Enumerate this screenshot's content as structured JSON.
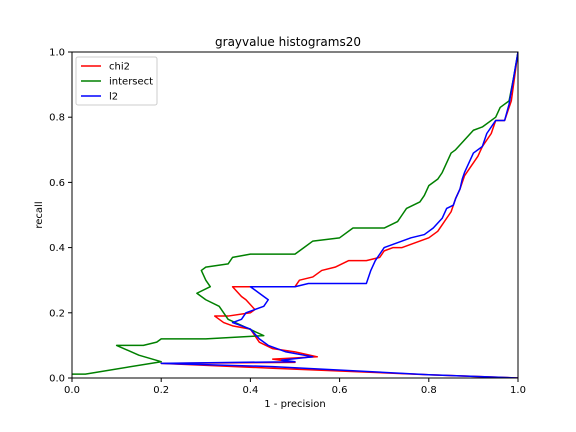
{
  "chart_data": {
    "type": "line",
    "title": "grayvalue histograms20",
    "xlabel": "1 - precision",
    "ylabel": "recall",
    "xlim": [
      0.0,
      1.0
    ],
    "ylim": [
      0.0,
      1.0
    ],
    "xticks": [
      "0.0",
      "0.2",
      "0.4",
      "0.6",
      "0.8",
      "1.0"
    ],
    "yticks": [
      "0.0",
      "0.2",
      "0.4",
      "0.6",
      "0.8",
      "1.0"
    ],
    "grid": false,
    "legend": "top-left",
    "series": [
      {
        "name": "chi2",
        "color": "#ff0000",
        "points": [
          [
            1.0,
            1.0
          ],
          [
            0.99,
            0.9
          ],
          [
            0.985,
            0.85
          ],
          [
            0.97,
            0.79
          ],
          [
            0.95,
            0.79
          ],
          [
            0.94,
            0.75
          ],
          [
            0.92,
            0.71
          ],
          [
            0.91,
            0.68
          ],
          [
            0.9,
            0.66
          ],
          [
            0.89,
            0.64
          ],
          [
            0.88,
            0.62
          ],
          [
            0.875,
            0.6
          ],
          [
            0.87,
            0.58
          ],
          [
            0.86,
            0.55
          ],
          [
            0.855,
            0.53
          ],
          [
            0.85,
            0.51
          ],
          [
            0.84,
            0.49
          ],
          [
            0.83,
            0.47
          ],
          [
            0.82,
            0.45
          ],
          [
            0.8,
            0.43
          ],
          [
            0.78,
            0.42
          ],
          [
            0.76,
            0.41
          ],
          [
            0.74,
            0.4
          ],
          [
            0.72,
            0.4
          ],
          [
            0.7,
            0.39
          ],
          [
            0.69,
            0.37
          ],
          [
            0.66,
            0.36
          ],
          [
            0.62,
            0.36
          ],
          [
            0.59,
            0.34
          ],
          [
            0.56,
            0.33
          ],
          [
            0.54,
            0.31
          ],
          [
            0.51,
            0.3
          ],
          [
            0.5,
            0.28
          ],
          [
            0.45,
            0.28
          ],
          [
            0.36,
            0.28
          ],
          [
            0.38,
            0.25
          ],
          [
            0.39,
            0.24
          ],
          [
            0.41,
            0.21
          ],
          [
            0.4,
            0.2
          ],
          [
            0.35,
            0.19
          ],
          [
            0.32,
            0.19
          ],
          [
            0.34,
            0.17
          ],
          [
            0.36,
            0.16
          ],
          [
            0.4,
            0.15
          ],
          [
            0.42,
            0.11
          ],
          [
            0.45,
            0.09
          ],
          [
            0.5,
            0.08
          ],
          [
            0.55,
            0.065
          ],
          [
            0.45,
            0.058
          ],
          [
            0.5,
            0.048
          ],
          [
            0.2,
            0.045
          ],
          [
            0.45,
            0.03
          ],
          [
            0.8,
            0.01
          ],
          [
            1.0,
            0.0
          ]
        ]
      },
      {
        "name": "intersect",
        "color": "#008000",
        "points": [
          [
            1.0,
            1.0
          ],
          [
            0.99,
            0.92
          ],
          [
            0.98,
            0.85
          ],
          [
            0.96,
            0.83
          ],
          [
            0.95,
            0.8
          ],
          [
            0.92,
            0.77
          ],
          [
            0.9,
            0.76
          ],
          [
            0.88,
            0.73
          ],
          [
            0.86,
            0.7
          ],
          [
            0.85,
            0.69
          ],
          [
            0.84,
            0.66
          ],
          [
            0.83,
            0.63
          ],
          [
            0.82,
            0.61
          ],
          [
            0.8,
            0.59
          ],
          [
            0.79,
            0.56
          ],
          [
            0.78,
            0.54
          ],
          [
            0.75,
            0.52
          ],
          [
            0.74,
            0.5
          ],
          [
            0.73,
            0.48
          ],
          [
            0.7,
            0.46
          ],
          [
            0.63,
            0.46
          ],
          [
            0.6,
            0.43
          ],
          [
            0.54,
            0.42
          ],
          [
            0.52,
            0.4
          ],
          [
            0.5,
            0.38
          ],
          [
            0.4,
            0.38
          ],
          [
            0.36,
            0.37
          ],
          [
            0.35,
            0.35
          ],
          [
            0.3,
            0.34
          ],
          [
            0.29,
            0.33
          ],
          [
            0.3,
            0.3
          ],
          [
            0.31,
            0.28
          ],
          [
            0.28,
            0.26
          ],
          [
            0.3,
            0.24
          ],
          [
            0.33,
            0.22
          ],
          [
            0.35,
            0.18
          ],
          [
            0.43,
            0.13
          ],
          [
            0.3,
            0.12
          ],
          [
            0.2,
            0.12
          ],
          [
            0.19,
            0.11
          ],
          [
            0.16,
            0.1
          ],
          [
            0.1,
            0.1
          ],
          [
            0.15,
            0.07
          ],
          [
            0.2,
            0.05
          ],
          [
            0.03,
            0.012
          ],
          [
            0.0,
            0.012
          ]
        ]
      },
      {
        "name": "l2",
        "color": "#0000ff",
        "points": [
          [
            1.0,
            1.0
          ],
          [
            0.99,
            0.92
          ],
          [
            0.98,
            0.84
          ],
          [
            0.97,
            0.79
          ],
          [
            0.95,
            0.79
          ],
          [
            0.93,
            0.75
          ],
          [
            0.92,
            0.71
          ],
          [
            0.9,
            0.69
          ],
          [
            0.89,
            0.66
          ],
          [
            0.88,
            0.63
          ],
          [
            0.875,
            0.61
          ],
          [
            0.87,
            0.58
          ],
          [
            0.86,
            0.55
          ],
          [
            0.855,
            0.53
          ],
          [
            0.84,
            0.52
          ],
          [
            0.83,
            0.49
          ],
          [
            0.81,
            0.46
          ],
          [
            0.79,
            0.44
          ],
          [
            0.76,
            0.43
          ],
          [
            0.74,
            0.42
          ],
          [
            0.72,
            0.41
          ],
          [
            0.7,
            0.4
          ],
          [
            0.69,
            0.38
          ],
          [
            0.68,
            0.36
          ],
          [
            0.67,
            0.33
          ],
          [
            0.66,
            0.29
          ],
          [
            0.6,
            0.29
          ],
          [
            0.53,
            0.29
          ],
          [
            0.5,
            0.28
          ],
          [
            0.4,
            0.28
          ],
          [
            0.42,
            0.26
          ],
          [
            0.44,
            0.24
          ],
          [
            0.43,
            0.22
          ],
          [
            0.39,
            0.2
          ],
          [
            0.38,
            0.18
          ],
          [
            0.36,
            0.17
          ],
          [
            0.4,
            0.15
          ],
          [
            0.42,
            0.12
          ],
          [
            0.44,
            0.1
          ],
          [
            0.48,
            0.08
          ],
          [
            0.54,
            0.065
          ],
          [
            0.47,
            0.055
          ],
          [
            0.5,
            0.05
          ],
          [
            0.2,
            0.045
          ],
          [
            0.45,
            0.035
          ],
          [
            0.8,
            0.01
          ],
          [
            1.0,
            0.0
          ]
        ]
      }
    ]
  }
}
